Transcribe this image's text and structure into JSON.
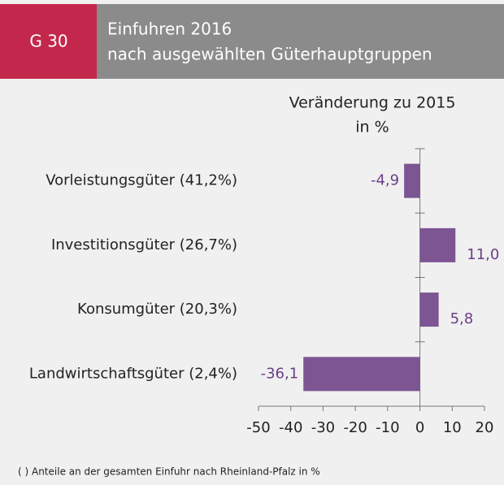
{
  "chart_data": {
    "type": "hbar",
    "chart_number": "G 30",
    "title": [
      "Einfuhren 2016",
      "nach ausgewählten Güterhauptgruppen"
    ],
    "value_axis_title": [
      "Veränderung zu 2015",
      "in %"
    ],
    "categories": [
      "Vorleistungsgüter (41,2%)",
      "Investitionsgüter (26,7%)",
      "Konsumgüter (20,3%)",
      "Landwirtschaftsgüter (2,4%)"
    ],
    "values": [
      -4.9,
      11.0,
      5.8,
      -36.1
    ],
    "value_labels": [
      "-4,9",
      "11,0",
      "5,8",
      "-36,1"
    ],
    "color": "#7d5592",
    "xlim": [
      -50,
      20
    ],
    "xticks": [
      -50,
      -40,
      -30,
      -20,
      -10,
      0,
      10,
      20
    ],
    "footnote": "( ) Anteile an der gesamten Einfuhr nach Rheinland-Pfalz in %"
  }
}
